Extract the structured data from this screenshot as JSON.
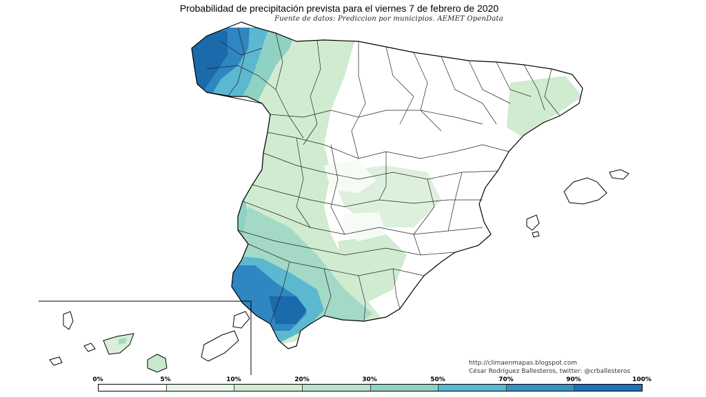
{
  "title": "Probabilidad de precipitación prevista para el viernes 7 de febrero de 2020",
  "subtitle": "Fuente de datos: Prediccion por municipios. AEMET OpenData",
  "credit": {
    "url": "http://climaenmapas.blogspot.com",
    "author": "César Rodríguez Ballesteros, twitter: @crballesteros"
  },
  "legend": {
    "labels": [
      "0%",
      "5%",
      "10%",
      "20%",
      "30%",
      "50%",
      "70%",
      "90%",
      "100%"
    ],
    "colors": [
      "#ffffff",
      "#e6f5e6",
      "#d0ebd0",
      "#b9e2c9",
      "#8fd1c3",
      "#5cb8d0",
      "#3a90c4",
      "#2270b4",
      "#0d5aa6"
    ]
  }
}
